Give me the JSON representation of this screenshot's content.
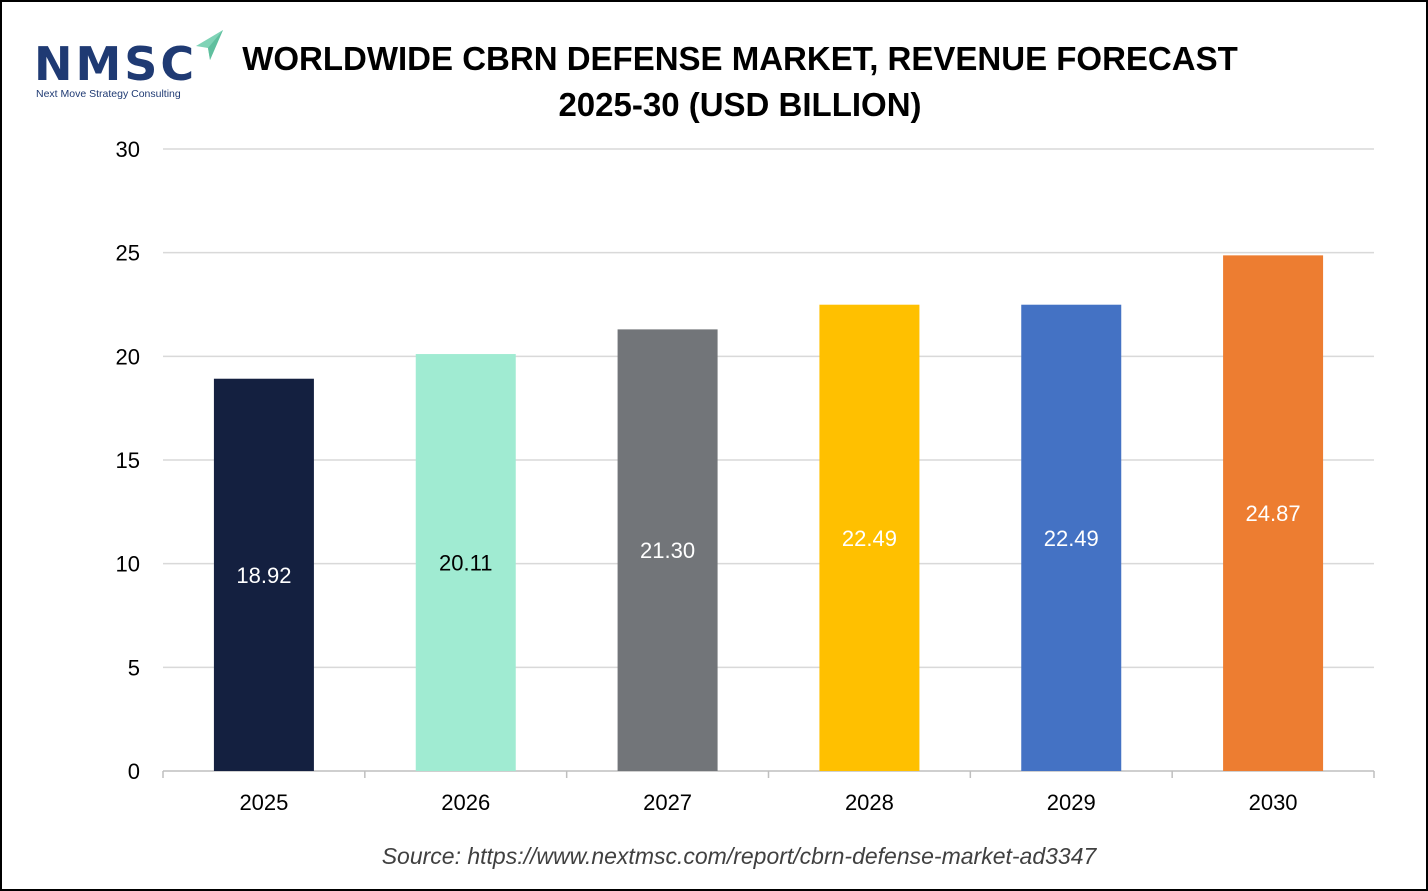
{
  "logo": {
    "letters": "NMSC",
    "tagline": "Next Move Strategy Consulting",
    "colors": {
      "letters": "#1f3a73",
      "accent": "#7fd3b6"
    }
  },
  "title": {
    "line1": "WORLDWIDE CBRN DEFENSE MARKET, REVENUE FORECAST",
    "line2": "2025-30 (USD BILLION)"
  },
  "source": "Source: https://www.nextmsc.com/report/cbrn-defense-market-ad3347",
  "chart_data": {
    "type": "bar",
    "title": "WORLDWIDE CBRN DEFENSE MARKET, REVENUE FORECAST 2025-30 (USD BILLION)",
    "xlabel": "",
    "ylabel": "",
    "categories": [
      "2025",
      "2026",
      "2027",
      "2028",
      "2029",
      "2030"
    ],
    "values": [
      18.92,
      20.11,
      21.3,
      22.49,
      22.49,
      24.87
    ],
    "value_labels": [
      "18.92",
      "20.11",
      "21.30",
      "22.49",
      "22.49",
      "24.87"
    ],
    "bar_colors": [
      "#142040",
      "#a0ebd2",
      "#727579",
      "#ffc000",
      "#4472c4",
      "#ed7d31"
    ],
    "label_colors": [
      "#ffffff",
      "#000000",
      "#ffffff",
      "#ffffff",
      "#ffffff",
      "#ffffff"
    ],
    "ylim": [
      0,
      30
    ],
    "yticks": [
      0,
      5,
      10,
      15,
      20,
      25,
      30
    ],
    "grid": true,
    "legend": "none"
  }
}
